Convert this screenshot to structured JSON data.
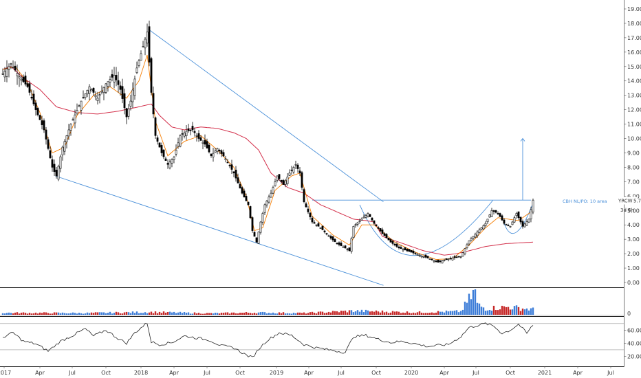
{
  "chart_data": {
    "type": "candlestick",
    "symbol_label": "YRCW",
    "last_price": "5.72",
    "countdown": "3d 6h",
    "annotation": "CBH NL/PO: 10 area",
    "colors": {
      "up_candle": "#ffffff",
      "down_candle": "#000000",
      "sma_short": "#f57c00",
      "sma_long": "#d32f4a",
      "trendline": "#4a90d9",
      "volume_up": "#3d7dd8",
      "volume_down": "#c62828",
      "rsi_line": "#222222"
    },
    "price_axis": {
      "min": 0,
      "max": 19,
      "ticks": [
        "19.00",
        "18.00",
        "17.00",
        "16.00",
        "15.00",
        "14.00",
        "13.00",
        "12.00",
        "11.00",
        "10.00",
        "9.00",
        "8.00",
        "7.00",
        "6.00",
        "5.00",
        "4.00",
        "3.00",
        "2.00",
        "1.00",
        "0.00"
      ]
    },
    "volume_axis": {
      "ticks": [
        "0"
      ]
    },
    "rsi_axis": {
      "min": 10,
      "max": 75,
      "ticks": [
        "60.00",
        "40.00",
        "20.00"
      ],
      "guides": [
        70,
        30
      ]
    },
    "time_axis": [
      "2017",
      "Apr",
      "Jul",
      "Oct",
      "2018",
      "Apr",
      "Jul",
      "Oct",
      "2019",
      "Apr",
      "Jul",
      "Oct",
      "2020",
      "Apr",
      "Jul",
      "Oct",
      "2021",
      "Apr",
      "Jul"
    ],
    "price_keypoints": [
      [
        0,
        14.5
      ],
      [
        4,
        15.2
      ],
      [
        8,
        14.3
      ],
      [
        12,
        13.6
      ],
      [
        16,
        12.0
      ],
      [
        20,
        10.6
      ],
      [
        24,
        8.0
      ],
      [
        26,
        7.4
      ],
      [
        29,
        9.4
      ],
      [
        33,
        11.0
      ],
      [
        38,
        12.6
      ],
      [
        42,
        13.6
      ],
      [
        46,
        12.8
      ],
      [
        50,
        13.8
      ],
      [
        54,
        14.4
      ],
      [
        57,
        13.4
      ],
      [
        60,
        11.5
      ],
      [
        62,
        12.6
      ],
      [
        65,
        14.9
      ],
      [
        68,
        16.4
      ],
      [
        70,
        17.4
      ],
      [
        72,
        13.2
      ],
      [
        74,
        10.2
      ],
      [
        77,
        9.0
      ],
      [
        80,
        8.2
      ],
      [
        83,
        8.7
      ],
      [
        86,
        10.2
      ],
      [
        89,
        10.5
      ],
      [
        92,
        10.6
      ],
      [
        95,
        10.0
      ],
      [
        98,
        9.6
      ],
      [
        101,
        8.8
      ],
      [
        104,
        9.3
      ],
      [
        108,
        8.6
      ],
      [
        112,
        7.6
      ],
      [
        116,
        6.2
      ],
      [
        119,
        5.4
      ],
      [
        121,
        3.6
      ],
      [
        123,
        2.8
      ],
      [
        125,
        4.2
      ],
      [
        127,
        5.4
      ],
      [
        130,
        6.2
      ],
      [
        133,
        7.4
      ],
      [
        136,
        6.8
      ],
      [
        139,
        7.6
      ],
      [
        142,
        8.2
      ],
      [
        144,
        7.6
      ],
      [
        146,
        5.6
      ],
      [
        150,
        4.2
      ],
      [
        154,
        3.8
      ],
      [
        158,
        3.2
      ],
      [
        162,
        2.7
      ],
      [
        166,
        2.4
      ],
      [
        168,
        2.2
      ],
      [
        170,
        3.9
      ],
      [
        174,
        4.4
      ],
      [
        177,
        4.8
      ],
      [
        180,
        4.1
      ],
      [
        184,
        3.4
      ],
      [
        188,
        2.8
      ],
      [
        192,
        2.4
      ],
      [
        196,
        2.2
      ],
      [
        200,
        2.0
      ],
      [
        204,
        1.8
      ],
      [
        208,
        1.6
      ],
      [
        211,
        1.4
      ],
      [
        214,
        1.55
      ],
      [
        218,
        1.7
      ],
      [
        222,
        1.8
      ],
      [
        226,
        2.9
      ],
      [
        230,
        3.5
      ],
      [
        234,
        4.1
      ],
      [
        237,
        5.0
      ],
      [
        240,
        4.8
      ],
      [
        243,
        4.1
      ],
      [
        246,
        3.9
      ],
      [
        249,
        4.8
      ],
      [
        252,
        3.9
      ],
      [
        255,
        4.4
      ],
      [
        257,
        5.72
      ]
    ],
    "sma_short_keypoints": [
      [
        0,
        14.8
      ],
      [
        6,
        15.0
      ],
      [
        12,
        13.9
      ],
      [
        18,
        11.8
      ],
      [
        24,
        9.0
      ],
      [
        30,
        9.4
      ],
      [
        36,
        11.6
      ],
      [
        44,
        13.0
      ],
      [
        52,
        13.6
      ],
      [
        60,
        12.8
      ],
      [
        66,
        14.0
      ],
      [
        70,
        15.8
      ],
      [
        74,
        11.2
      ],
      [
        80,
        8.8
      ],
      [
        88,
        9.8
      ],
      [
        96,
        10.2
      ],
      [
        104,
        9.2
      ],
      [
        112,
        8.0
      ],
      [
        118,
        6.0
      ],
      [
        122,
        3.6
      ],
      [
        126,
        3.8
      ],
      [
        132,
        6.4
      ],
      [
        140,
        7.4
      ],
      [
        144,
        7.6
      ],
      [
        150,
        4.6
      ],
      [
        160,
        3.3
      ],
      [
        168,
        2.6
      ],
      [
        174,
        4.0
      ],
      [
        180,
        4.0
      ],
      [
        190,
        2.8
      ],
      [
        200,
        2.1
      ],
      [
        210,
        1.6
      ],
      [
        218,
        1.65
      ],
      [
        226,
        2.6
      ],
      [
        234,
        3.8
      ],
      [
        240,
        4.5
      ],
      [
        250,
        4.3
      ],
      [
        257,
        5.0
      ]
    ],
    "sma_long_keypoints": [
      [
        0,
        14.8
      ],
      [
        4,
        15.0
      ],
      [
        10,
        14.2
      ],
      [
        18,
        13.4
      ],
      [
        26,
        12.2
      ],
      [
        36,
        11.8
      ],
      [
        46,
        11.7
      ],
      [
        56,
        11.9
      ],
      [
        66,
        12.2
      ],
      [
        72,
        12.4
      ],
      [
        76,
        11.6
      ],
      [
        82,
        10.8
      ],
      [
        88,
        10.6
      ],
      [
        96,
        10.8
      ],
      [
        104,
        10.7
      ],
      [
        112,
        10.4
      ],
      [
        118,
        10.0
      ],
      [
        124,
        9.2
      ],
      [
        130,
        7.6
      ],
      [
        138,
        6.6
      ],
      [
        146,
        6.2
      ],
      [
        154,
        5.4
      ],
      [
        162,
        4.9
      ],
      [
        170,
        4.4
      ],
      [
        176,
        4.3
      ],
      [
        180,
        4.2
      ],
      [
        184,
        3.2
      ],
      [
        194,
        2.7
      ],
      [
        204,
        2.2
      ],
      [
        214,
        1.9
      ],
      [
        220,
        2.0
      ],
      [
        226,
        2.2
      ],
      [
        234,
        2.5
      ],
      [
        244,
        2.7
      ],
      [
        257,
        2.8
      ]
    ],
    "volume_keypoints": [
      [
        0,
        0.08
      ],
      [
        40,
        0.07
      ],
      [
        72,
        0.11
      ],
      [
        100,
        0.06
      ],
      [
        122,
        0.09
      ],
      [
        146,
        0.07
      ],
      [
        170,
        0.16
      ],
      [
        200,
        0.1
      ],
      [
        222,
        0.14
      ],
      [
        229,
        1.0
      ],
      [
        230,
        0.42
      ],
      [
        234,
        0.26
      ],
      [
        245,
        0.32
      ],
      [
        257,
        0.22
      ]
    ],
    "rsi_keypoints": [
      [
        0,
        49
      ],
      [
        5,
        56
      ],
      [
        10,
        43
      ],
      [
        16,
        39
      ],
      [
        22,
        28
      ],
      [
        28,
        43
      ],
      [
        34,
        52
      ],
      [
        40,
        62
      ],
      [
        44,
        51
      ],
      [
        50,
        60
      ],
      [
        56,
        47
      ],
      [
        60,
        40
      ],
      [
        64,
        56
      ],
      [
        70,
        71
      ],
      [
        72,
        42
      ],
      [
        76,
        38
      ],
      [
        82,
        41
      ],
      [
        88,
        51
      ],
      [
        94,
        48
      ],
      [
        100,
        45
      ],
      [
        106,
        36
      ],
      [
        112,
        33
      ],
      [
        118,
        22
      ],
      [
        121,
        18
      ],
      [
        124,
        31
      ],
      [
        128,
        44
      ],
      [
        134,
        56
      ],
      [
        140,
        52
      ],
      [
        146,
        38
      ],
      [
        152,
        33
      ],
      [
        158,
        30
      ],
      [
        166,
        26
      ],
      [
        170,
        50
      ],
      [
        176,
        52
      ],
      [
        182,
        46
      ],
      [
        188,
        41
      ],
      [
        194,
        43
      ],
      [
        200,
        39
      ],
      [
        206,
        35
      ],
      [
        212,
        37
      ],
      [
        216,
        38
      ],
      [
        222,
        50
      ],
      [
        226,
        64
      ],
      [
        230,
        67
      ],
      [
        234,
        70
      ],
      [
        238,
        66
      ],
      [
        242,
        55
      ],
      [
        246,
        60
      ],
      [
        250,
        69
      ],
      [
        254,
        55
      ],
      [
        257,
        68
      ]
    ]
  }
}
